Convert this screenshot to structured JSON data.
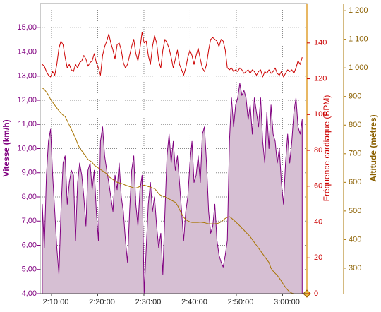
{
  "chart_data": {
    "type": "line",
    "ylabel": "Vitesse (km/h)",
    "y2label": "Fréquence cardiaque (BPM)",
    "y3label": "Altitude (mètres)",
    "grid": true,
    "x": [
      128,
      128.45,
      128.9,
      129.35,
      129.8,
      130.25,
      130.7,
      131.15,
      131.6,
      132.05,
      132.5,
      132.95,
      133.4,
      133.85,
      134.3,
      134.75,
      135.2,
      135.65,
      136.1,
      136.55,
      137,
      137.45,
      137.9,
      138.35,
      138.8,
      139.25,
      139.7,
      140.15,
      140.6,
      141.05,
      141.5,
      141.95,
      142.4,
      142.85,
      143.3,
      143.75,
      144.2,
      144.65,
      145.1,
      145.55,
      146,
      146.45,
      146.9,
      147.35,
      147.8,
      148.25,
      148.7,
      149.15,
      149.6,
      150.05,
      150.5,
      150.95,
      151.4,
      151.85,
      152.3,
      152.75,
      153.2,
      153.65,
      154.1,
      154.55,
      155,
      155.45,
      155.9,
      156.35,
      156.8,
      157.25,
      157.7,
      158.15,
      158.6,
      159.05,
      159.5,
      159.95,
      160.4,
      160.85,
      161.3,
      161.75,
      162.2,
      162.65,
      163.1,
      163.55,
      164,
      164.45,
      164.9,
      165.35,
      165.8,
      166.25,
      166.7,
      167.15,
      167.6,
      168.05,
      168.5,
      168.95,
      169.4,
      169.85,
      170.3,
      170.75,
      171.2,
      171.65,
      172.1,
      172.55,
      173,
      173.45,
      173.9,
      174.35,
      174.8,
      175.25,
      175.7,
      176.15,
      176.6,
      177.05,
      177.5,
      177.95,
      178.4,
      178.85,
      179.3,
      179.75,
      180.2,
      180.65,
      181.1,
      181.55,
      182,
      182.45,
      182.9,
      183.35,
      183.8,
      184.25
    ],
    "xlim": [
      127.56,
      185.27
    ],
    "xticks": [
      {
        "value": 130,
        "label": "2:10:00"
      },
      {
        "value": 140,
        "label": "2:20:00"
      },
      {
        "value": 150,
        "label": "2:30:00"
      },
      {
        "value": 160,
        "label": "2:40:00"
      },
      {
        "value": 170,
        "label": "2:50:00"
      },
      {
        "value": 180,
        "label": "3:00:00"
      }
    ],
    "ylim": [
      4,
      16
    ],
    "yticks": [
      {
        "value": 4,
        "label": "4,00"
      },
      {
        "value": 5,
        "label": "5,00"
      },
      {
        "value": 6,
        "label": "6,00"
      },
      {
        "value": 7,
        "label": "7,00"
      },
      {
        "value": 8,
        "label": "8,00"
      },
      {
        "value": 9,
        "label": "9,00"
      },
      {
        "value": 10,
        "label": "10,00"
      },
      {
        "value": 11,
        "label": "11,00"
      },
      {
        "value": 12,
        "label": "12,00"
      },
      {
        "value": 13,
        "label": "13,00"
      },
      {
        "value": 14,
        "label": "14,00"
      },
      {
        "value": 15,
        "label": "15,00"
      }
    ],
    "y2lim": [
      0,
      162
    ],
    "y2ticks": [
      0,
      20,
      40,
      60,
      80,
      100,
      120,
      140
    ],
    "y3lim": [
      211,
      1225
    ],
    "y3ticks": [
      300,
      400,
      500,
      600,
      700,
      800,
      900,
      {
        "value": 1000,
        "label": "1 000"
      },
      {
        "value": 1100,
        "label": "1 100"
      },
      {
        "value": 1200,
        "label": "1 200"
      }
    ],
    "series": [
      {
        "color": "#800080",
        "fill": "#d6bfd3",
        "area": true,
        "values": [
          7.7,
          5.9,
          8.9,
          10.3,
          10.8,
          8.9,
          7.4,
          5.9,
          4.8,
          7.4,
          9.4,
          9.7,
          7.7,
          8.6,
          9.1,
          8.9,
          6.2,
          8.6,
          9.4,
          8.9,
          8.0,
          6.8,
          9.1,
          9.4,
          8.3,
          9.1,
          7.4,
          6.2,
          10.3,
          10.9,
          9.7,
          9.1,
          8.6,
          8.0,
          7.4,
          8.9,
          8.3,
          9.4,
          8.0,
          7.4,
          6.2,
          5.3,
          7.4,
          9.1,
          9.7,
          7.7,
          6.8,
          8.3,
          8.9,
          4.0,
          5.9,
          7.7,
          8.6,
          7.4,
          8.0,
          6.8,
          5.9,
          6.5,
          4.8,
          7.4,
          9.7,
          10.6,
          9.4,
          10.3,
          9.1,
          9.7,
          8.6,
          7.4,
          6.2,
          7.4,
          8.0,
          9.4,
          10.3,
          8.6,
          8.9,
          9.7,
          8.6,
          10.6,
          10.9,
          9.4,
          7.4,
          6.5,
          6.8,
          7.7,
          6.2,
          5.6,
          5.3,
          5.1,
          5.6,
          6.2,
          10.3,
          12.1,
          10.9,
          11.8,
          12.1,
          12.7,
          12.2,
          12.4,
          12.1,
          11.2,
          11.8,
          10.6,
          12.1,
          11.5,
          10.9,
          12.1,
          10.3,
          9.4,
          11.5,
          10.0,
          11.8,
          10.6,
          10.3,
          9.4,
          10.0,
          8.6,
          7.7,
          9.4,
          10.6,
          9.4,
          10.3,
          11.5,
          12.1,
          10.9,
          10.6,
          11.2
        ]
      },
      {
        "color": "#cc0000",
        "axis": "y2",
        "values": [
          128,
          127,
          124,
          122,
          121,
          124,
          122,
          128,
          137,
          141,
          139,
          132,
          126,
          128,
          125,
          124,
          128,
          126,
          129,
          130,
          133,
          131,
          127,
          129,
          130,
          134,
          129,
          126,
          122,
          133,
          138,
          141,
          145,
          140,
          136,
          131,
          139,
          140,
          136,
          129,
          126,
          128,
          133,
          138,
          142,
          134,
          130,
          137,
          146,
          140,
          141,
          133,
          128,
          138,
          144,
          140,
          130,
          126,
          136,
          142,
          140,
          137,
          132,
          126,
          131,
          136,
          128,
          125,
          122,
          126,
          132,
          136,
          133,
          128,
          133,
          137,
          131,
          126,
          124,
          128,
          136,
          142,
          143,
          142,
          141,
          138,
          142,
          141,
          136,
          126,
          125,
          126,
          124,
          125,
          124,
          126,
          125,
          123,
          124,
          125,
          123,
          125,
          124,
          122,
          124,
          125,
          121,
          124,
          123,
          125,
          123,
          124,
          126,
          123,
          122,
          124,
          121,
          123,
          125,
          124,
          125,
          123,
          126,
          130,
          128,
          132
        ]
      },
      {
        "color": "#a87400",
        "axis": "y3",
        "values": [
          930,
          925,
          915,
          905,
          890,
          880,
          870,
          860,
          850,
          842,
          835,
          830,
          815,
          800,
          785,
          770,
          755,
          735,
          720,
          710,
          700,
          690,
          680,
          675,
          670,
          660,
          655,
          650,
          645,
          640,
          635,
          630,
          620,
          615,
          610,
          605,
          600,
          598,
          596,
          594,
          590,
          588,
          585,
          583,
          580,
          580,
          582,
          586,
          588,
          590,
          588,
          585,
          583,
          580,
          578,
          570,
          560,
          555,
          552,
          550,
          545,
          542,
          538,
          534,
          530,
          520,
          505,
          490,
          478,
          470,
          465,
          462,
          460,
          460,
          460,
          460,
          461,
          460,
          459,
          457,
          455,
          455,
          455,
          455,
          456,
          458,
          462,
          468,
          474,
          478,
          480,
          475,
          468,
          462,
          455,
          448,
          440,
          433,
          425,
          418,
          410,
          400,
          390,
          380,
          370,
          360,
          350,
          340,
          330,
          320,
          300,
          290,
          282,
          275,
          265,
          255,
          243,
          233,
          224,
          217,
          213,
          211,
          209,
          207,
          205,
          203
        ]
      }
    ]
  }
}
